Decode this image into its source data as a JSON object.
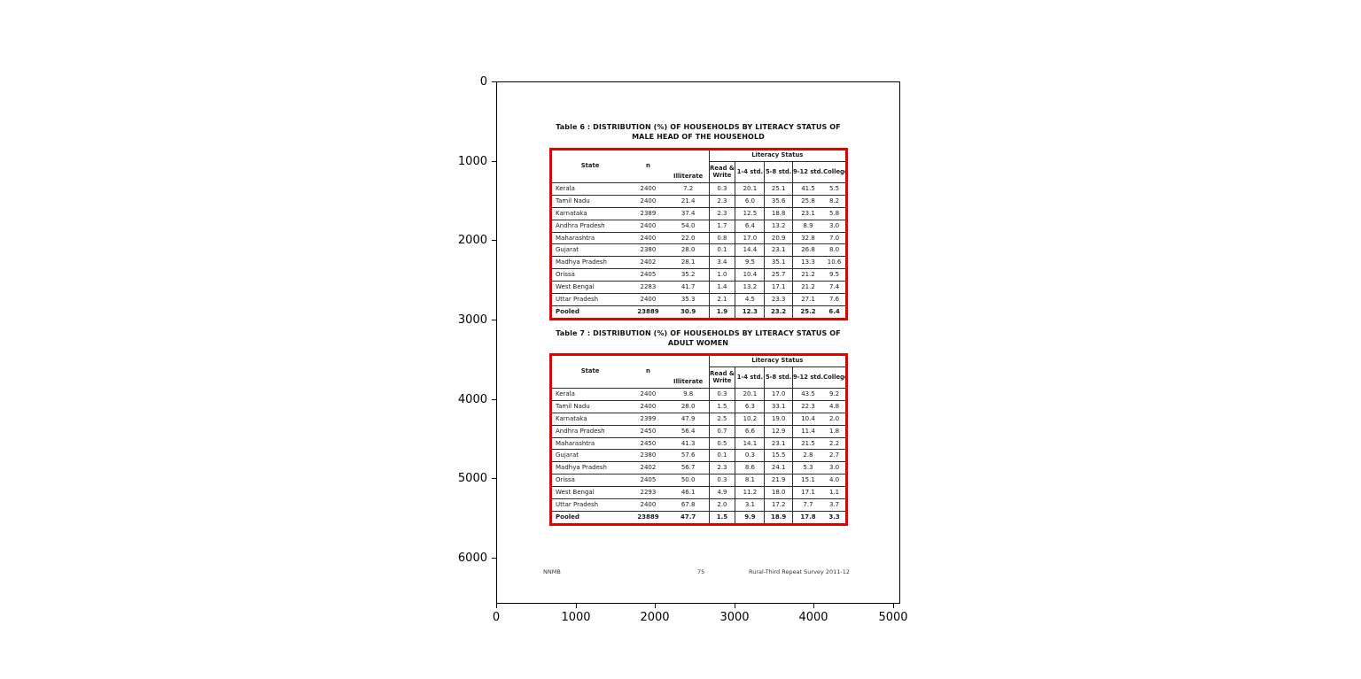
{
  "figure": {
    "x_ticks": [
      "0",
      "1000",
      "2000",
      "3000",
      "4000",
      "5000"
    ],
    "y_ticks": [
      "0",
      "1000",
      "2000",
      "3000",
      "4000",
      "5000",
      "6000"
    ]
  },
  "page": {
    "accent_color": "#e30000",
    "footer_left": "NNMB",
    "footer_center": "75",
    "footer_right": "Rural-Third Repeat Survey 2011-12",
    "tables": [
      {
        "title1": "Table 6 : DISTRIBUTION (%) OF HOUSEHOLDS BY LITERACY STATUS OF",
        "title2": "MALE HEAD OF THE HOUSEHOLD",
        "group_header": "Literacy Status",
        "columns": [
          "State",
          "n",
          "Illiterate",
          "Read & Write",
          "1-4 std.",
          "5-8 std.",
          "9-12 std.",
          "College"
        ],
        "rows": [
          [
            "Kerala",
            "2400",
            "7.2",
            "0.3",
            "20.1",
            "25.1",
            "41.5",
            "5.5"
          ],
          [
            "Tamil Nadu",
            "2400",
            "21.4",
            "2.3",
            "6.0",
            "35.6",
            "25.8",
            "8.2"
          ],
          [
            "Karnataka",
            "2389",
            "37.4",
            "2.3",
            "12.5",
            "18.8",
            "23.1",
            "5.8"
          ],
          [
            "Andhra Pradesh",
            "2400",
            "54.0",
            "1.7",
            "6.4",
            "13.2",
            "8.9",
            "3.0"
          ],
          [
            "Maharashtra",
            "2400",
            "22.0",
            "0.8",
            "17.0",
            "20.9",
            "32.8",
            "7.0"
          ],
          [
            "Gujarat",
            "2380",
            "28.0",
            "0.1",
            "14.4",
            "23.1",
            "26.8",
            "8.0"
          ],
          [
            "Madhya Pradesh",
            "2402",
            "28.1",
            "3.4",
            "9.5",
            "35.1",
            "13.3",
            "10.6"
          ],
          [
            "Orissa",
            "2405",
            "35.2",
            "1.0",
            "10.4",
            "25.7",
            "21.2",
            "9.5"
          ],
          [
            "West Bengal",
            "2283",
            "41.7",
            "1.4",
            "13.2",
            "17.1",
            "21.2",
            "7.4"
          ],
          [
            "Uttar Pradesh",
            "2400",
            "35.3",
            "2.1",
            "4.5",
            "23.3",
            "27.1",
            "7.6"
          ],
          [
            "Pooled",
            "23889",
            "30.9",
            "1.9",
            "12.3",
            "23.2",
            "25.2",
            "6.4"
          ]
        ]
      },
      {
        "title1": "Table 7 : DISTRIBUTION (%) OF HOUSEHOLDS BY LITERACY STATUS OF",
        "title2": "ADULT WOMEN",
        "group_header": "Literacy Status",
        "columns": [
          "State",
          "n",
          "Illiterate",
          "Read & Write",
          "1-4 std.",
          "5-8 std.",
          "9-12 std.",
          "College"
        ],
        "rows": [
          [
            "Kerala",
            "2400",
            "9.8",
            "0.3",
            "20.1",
            "17.0",
            "43.5",
            "9.2"
          ],
          [
            "Tamil Nadu",
            "2400",
            "28.0",
            "1.5",
            "6.3",
            "33.1",
            "22.3",
            "4.8"
          ],
          [
            "Karnataka",
            "2399",
            "47.9",
            "2.5",
            "10.2",
            "19.0",
            "10.4",
            "2.0"
          ],
          [
            "Andhra Pradesh",
            "2450",
            "56.4",
            "0.7",
            "6.6",
            "12.9",
            "11.4",
            "1.8"
          ],
          [
            "Maharashtra",
            "2450",
            "41.3",
            "0.5",
            "14.1",
            "23.1",
            "21.5",
            "2.2"
          ],
          [
            "Gujarat",
            "2380",
            "57.6",
            "0.1",
            "0.3",
            "15.5",
            "2.8",
            "2.7"
          ],
          [
            "Madhya Pradesh",
            "2402",
            "56.7",
            "2.3",
            "8.6",
            "24.1",
            "5.3",
            "3.0"
          ],
          [
            "Orissa",
            "2405",
            "50.0",
            "0.3",
            "8.1",
            "21.9",
            "15.1",
            "4.0"
          ],
          [
            "West Bengal",
            "2293",
            "46.1",
            "4.9",
            "11.2",
            "18.0",
            "17.1",
            "1.1"
          ],
          [
            "Uttar Pradesh",
            "2400",
            "67.8",
            "2.0",
            "3.1",
            "17.2",
            "7.7",
            "3.7"
          ],
          [
            "Pooled",
            "23889",
            "47.7",
            "1.5",
            "9.9",
            "18.9",
            "17.8",
            "3.3"
          ]
        ]
      }
    ]
  }
}
